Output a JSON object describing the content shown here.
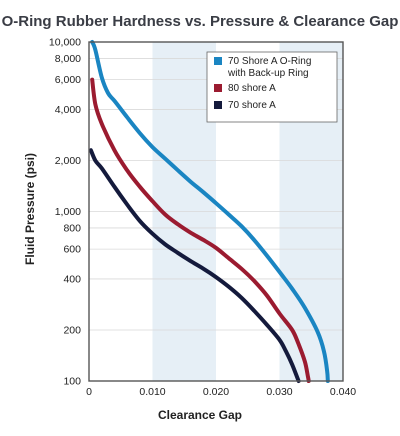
{
  "chart_data": {
    "type": "line",
    "title": "O-Ring Rubber Hardness vs. Pressure & Clearance Gap",
    "xlabel": "Clearance Gap",
    "ylabel": "Fluid Pressure (psi)",
    "x_scale": "linear",
    "y_scale": "log",
    "xlim": [
      0,
      0.04
    ],
    "ylim": [
      100,
      10000
    ],
    "x_ticks": [
      "0",
      "0.010",
      "0.020",
      "0.030",
      "0.040"
    ],
    "y_ticks": [
      "100",
      "200",
      "400",
      "600",
      "800",
      "1,000",
      "2,000",
      "4,000",
      "6,000",
      "8,000",
      "10,000"
    ],
    "x_tick_values": [
      0,
      0.01,
      0.02,
      0.03,
      0.04
    ],
    "y_tick_values": [
      100,
      200,
      400,
      600,
      800,
      1000,
      2000,
      4000,
      6000,
      8000,
      10000
    ],
    "shaded_bands": [
      [
        0.01,
        0.02
      ],
      [
        0.03,
        0.04
      ]
    ],
    "grid": "horizontal",
    "legend_position": "top-right",
    "series": [
      {
        "name": "70 Shore A O-Ring with Back-up Ring",
        "color": "#1a85c2",
        "points": [
          [
            0.0005,
            10000
          ],
          [
            0.001,
            9000
          ],
          [
            0.002,
            6200
          ],
          [
            0.003,
            5000
          ],
          [
            0.004,
            4500
          ],
          [
            0.006,
            3600
          ],
          [
            0.008,
            2900
          ],
          [
            0.01,
            2400
          ],
          [
            0.012,
            2050
          ],
          [
            0.014,
            1750
          ],
          [
            0.016,
            1500
          ],
          [
            0.018,
            1300
          ],
          [
            0.02,
            1120
          ],
          [
            0.022,
            960
          ],
          [
            0.024,
            820
          ],
          [
            0.026,
            680
          ],
          [
            0.028,
            550
          ],
          [
            0.03,
            440
          ],
          [
            0.032,
            350
          ],
          [
            0.034,
            270
          ],
          [
            0.036,
            195
          ],
          [
            0.037,
            150
          ],
          [
            0.0375,
            115
          ],
          [
            0.0376,
            100
          ]
        ]
      },
      {
        "name": "80 shore A",
        "color": "#9b1b30",
        "points": [
          [
            0.0005,
            6000
          ],
          [
            0.001,
            4300
          ],
          [
            0.002,
            3300
          ],
          [
            0.004,
            2300
          ],
          [
            0.006,
            1750
          ],
          [
            0.008,
            1400
          ],
          [
            0.01,
            1150
          ],
          [
            0.012,
            960
          ],
          [
            0.014,
            840
          ],
          [
            0.016,
            750
          ],
          [
            0.018,
            680
          ],
          [
            0.02,
            610
          ],
          [
            0.022,
            530
          ],
          [
            0.024,
            460
          ],
          [
            0.026,
            390
          ],
          [
            0.028,
            320
          ],
          [
            0.03,
            250
          ],
          [
            0.032,
            200
          ],
          [
            0.033,
            165
          ],
          [
            0.034,
            130
          ],
          [
            0.0345,
            105
          ],
          [
            0.0346,
            100
          ]
        ]
      },
      {
        "name": "70 shore A",
        "color": "#141a3c",
        "points": [
          [
            0.0003,
            2300
          ],
          [
            0.001,
            2000
          ],
          [
            0.002,
            1800
          ],
          [
            0.004,
            1400
          ],
          [
            0.006,
            1100
          ],
          [
            0.008,
            880
          ],
          [
            0.01,
            740
          ],
          [
            0.012,
            640
          ],
          [
            0.014,
            570
          ],
          [
            0.016,
            510
          ],
          [
            0.018,
            460
          ],
          [
            0.02,
            410
          ],
          [
            0.022,
            360
          ],
          [
            0.024,
            310
          ],
          [
            0.026,
            260
          ],
          [
            0.028,
            215
          ],
          [
            0.03,
            175
          ],
          [
            0.031,
            150
          ],
          [
            0.032,
            125
          ],
          [
            0.033,
            100
          ]
        ]
      }
    ]
  }
}
